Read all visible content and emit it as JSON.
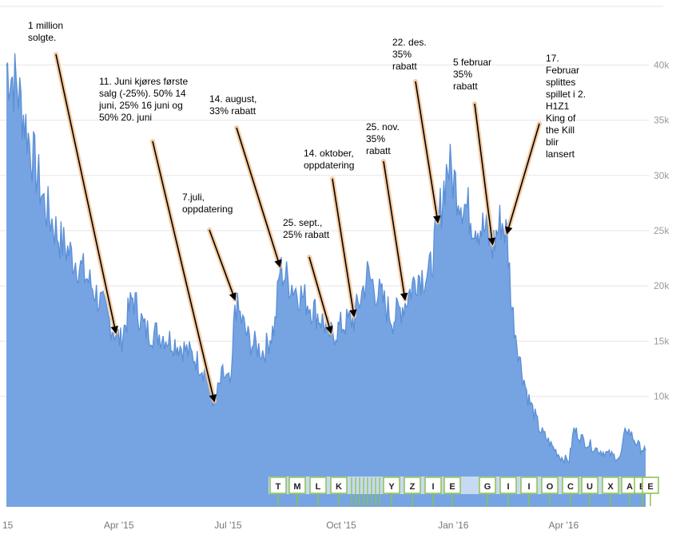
{
  "chart_data": {
    "type": "area",
    "title": "",
    "xlabel": "",
    "ylabel": "",
    "ylim": [
      0,
      45000
    ],
    "grid": true,
    "colors": {
      "fill": "#6f9fe0",
      "line": "#5b8fd6",
      "arrow_glow": "#f6c79a",
      "marker_border": "#8bc34a"
    },
    "y_ticks": [
      {
        "value": 10000,
        "label": "10k"
      },
      {
        "value": 15000,
        "label": "15k"
      },
      {
        "value": 20000,
        "label": "20k"
      },
      {
        "value": 25000,
        "label": "25k"
      },
      {
        "value": 30000,
        "label": "30k"
      },
      {
        "value": 35000,
        "label": "35k"
      },
      {
        "value": 40000,
        "label": "40k"
      }
    ],
    "x_ticks": [
      {
        "date": "2015-01-01",
        "label": "15"
      },
      {
        "date": "2015-04-01",
        "label": "Apr '15"
      },
      {
        "date": "2015-07-01",
        "label": "Jul '15"
      },
      {
        "date": "2015-10-01",
        "label": "Oct '15"
      },
      {
        "date": "2016-01-01",
        "label": "Jan '16"
      },
      {
        "date": "2016-04-01",
        "label": "Apr '16"
      }
    ],
    "series": [
      {
        "points": [
          [
            "2015-01-01",
            40000
          ],
          [
            "2015-01-10",
            38000
          ],
          [
            "2015-01-20",
            33000
          ],
          [
            "2015-02-01",
            27500
          ],
          [
            "2015-02-15",
            24000
          ],
          [
            "2015-03-01",
            22000
          ],
          [
            "2015-03-15",
            19500
          ],
          [
            "2015-03-28",
            16500
          ],
          [
            "2015-04-05",
            15000
          ],
          [
            "2015-04-15",
            19000
          ],
          [
            "2015-04-25",
            16000
          ],
          [
            "2015-05-10",
            15500
          ],
          [
            "2015-05-25",
            14500
          ],
          [
            "2015-06-05",
            13500
          ],
          [
            "2015-06-15",
            12000
          ],
          [
            "2015-06-21",
            9300
          ],
          [
            "2015-06-28",
            12000
          ],
          [
            "2015-07-05",
            11000
          ],
          [
            "2015-07-08",
            18500
          ],
          [
            "2015-07-20",
            15000
          ],
          [
            "2015-08-01",
            14000
          ],
          [
            "2015-08-10",
            16500
          ],
          [
            "2015-08-14",
            21500
          ],
          [
            "2015-08-25",
            20000
          ],
          [
            "2015-09-10",
            18000
          ],
          [
            "2015-09-20",
            16500
          ],
          [
            "2015-09-25",
            15500
          ],
          [
            "2015-10-05",
            16500
          ],
          [
            "2015-10-14",
            17000
          ],
          [
            "2015-10-25",
            21000
          ],
          [
            "2015-11-05",
            19000
          ],
          [
            "2015-11-15",
            17000
          ],
          [
            "2015-11-25",
            18500
          ],
          [
            "2015-12-05",
            21000
          ],
          [
            "2015-12-15",
            21000
          ],
          [
            "2015-12-22",
            25500
          ],
          [
            "2015-12-30",
            31000
          ],
          [
            "2016-01-10",
            28000
          ],
          [
            "2016-01-20",
            26000
          ],
          [
            "2016-01-30",
            25000
          ],
          [
            "2016-02-05",
            23500
          ],
          [
            "2016-02-12",
            26000
          ],
          [
            "2016-02-17",
            24500
          ],
          [
            "2016-02-21",
            18000
          ],
          [
            "2016-02-28",
            13000
          ],
          [
            "2016-03-05",
            10000
          ],
          [
            "2016-03-15",
            7000
          ],
          [
            "2016-03-25",
            5500
          ],
          [
            "2016-04-01",
            4500
          ],
          [
            "2016-04-08",
            4200
          ],
          [
            "2016-04-12",
            7000
          ],
          [
            "2016-04-20",
            6000
          ],
          [
            "2016-05-01",
            5200
          ],
          [
            "2016-05-10",
            4800
          ],
          [
            "2016-05-20",
            4400
          ],
          [
            "2016-05-25",
            7200
          ],
          [
            "2016-06-05",
            5400
          ],
          [
            "2016-06-10",
            5100
          ]
        ]
      }
    ],
    "annotations": [
      {
        "lines": [
          "1 million",
          "solgte."
        ],
        "target": [
          "2015-04-01",
          15500
        ]
      },
      {
        "lines": [
          "11. Juni kjøres første",
          "salg (-25%). 50% 14",
          "juni, 25% 16 juni og",
          "50% 20. juni"
        ],
        "target": [
          "2015-06-21",
          9300
        ]
      },
      {
        "lines": [
          "7.juli,",
          "oppdatering"
        ],
        "target": [
          "2015-07-08",
          18500
        ]
      },
      {
        "lines": [
          "14. august,",
          "33% rabatt"
        ],
        "target": [
          "2015-08-14",
          21500
        ]
      },
      {
        "lines": [
          "25. sept.,",
          "25% rabatt"
        ],
        "target": [
          "2015-09-25",
          15500
        ]
      },
      {
        "lines": [
          "14. oktober,",
          "oppdatering"
        ],
        "target": [
          "2015-10-14",
          17000
        ]
      },
      {
        "lines": [
          "25. nov.",
          "35%",
          "rabatt"
        ],
        "target": [
          "2015-11-25",
          18500
        ]
      },
      {
        "lines": [
          "22. des.",
          "35%",
          "rabatt"
        ],
        "target": [
          "2015-12-22",
          25500
        ]
      },
      {
        "lines": [
          "5 februar",
          "35%",
          "rabatt"
        ],
        "target": [
          "2016-02-05",
          23500
        ]
      },
      {
        "lines": [
          "17.",
          "Februar",
          "splittes",
          "spillet i 2.",
          "H1Z1",
          "King of",
          "the Kill",
          "blir",
          "lansert"
        ],
        "target": [
          "2016-02-17",
          24500
        ]
      }
    ],
    "markers": [
      "T",
      "M",
      "L",
      "K",
      "Y",
      "Z",
      "I",
      "E",
      "G",
      "I",
      "I",
      "O",
      "C",
      "U",
      "X",
      "A",
      "B",
      "E"
    ]
  }
}
